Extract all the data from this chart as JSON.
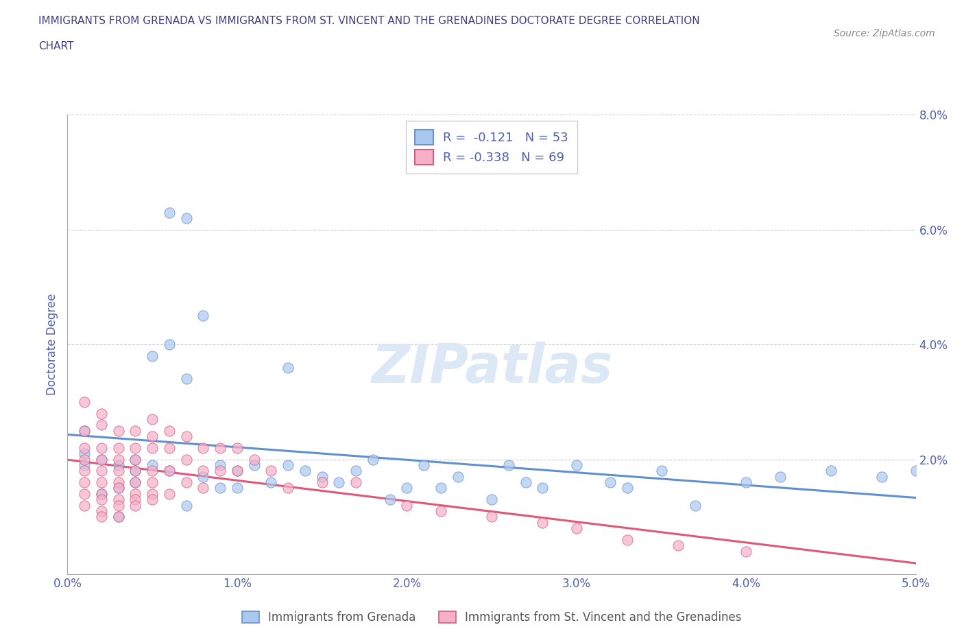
{
  "title_line1": "IMMIGRANTS FROM GRENADA VS IMMIGRANTS FROM ST. VINCENT AND THE GRENADINES DOCTORATE DEGREE CORRELATION",
  "title_line2": "CHART",
  "source": "Source: ZipAtlas.com",
  "ylabel": "Doctorate Degree",
  "xlim": [
    0.0,
    0.05
  ],
  "ylim": [
    0.0,
    0.08
  ],
  "xticks": [
    0.0,
    0.01,
    0.02,
    0.03,
    0.04,
    0.05
  ],
  "xticklabels": [
    "0.0%",
    "1.0%",
    "2.0%",
    "3.0%",
    "4.0%",
    "5.0%"
  ],
  "yticks": [
    0.0,
    0.02,
    0.04,
    0.06,
    0.08
  ],
  "yticklabels": [
    "",
    "2.0%",
    "4.0%",
    "6.0%",
    "8.0%"
  ],
  "grenada_color": "#a8c8f0",
  "stvincent_color": "#f5b0c8",
  "grenada_edge_color": "#7090c8",
  "stvincent_edge_color": "#d06080",
  "grenada_line_color": "#6090d0",
  "stvincent_line_color": "#e05878",
  "legend_text1": "R =  -0.121   N = 53",
  "legend_text2": "R = -0.338   N = 69",
  "legend_label1": "Immigrants from Grenada",
  "legend_label2": "Immigrants from St. Vincent and the Grenadines",
  "watermark": "ZIPatlas",
  "watermark_color": "#dce8f5",
  "title_color": "#404080",
  "axis_color": "#5060b0",
  "tick_color": "#5060b0",
  "grenada_scatter_x": [
    0.001,
    0.001,
    0.001,
    0.002,
    0.002,
    0.003,
    0.003,
    0.003,
    0.004,
    0.004,
    0.004,
    0.005,
    0.005,
    0.006,
    0.006,
    0.006,
    0.007,
    0.007,
    0.007,
    0.008,
    0.008,
    0.009,
    0.009,
    0.01,
    0.01,
    0.011,
    0.012,
    0.013,
    0.013,
    0.014,
    0.015,
    0.016,
    0.017,
    0.018,
    0.019,
    0.02,
    0.021,
    0.022,
    0.023,
    0.025,
    0.026,
    0.027,
    0.028,
    0.03,
    0.032,
    0.033,
    0.035,
    0.037,
    0.04,
    0.042,
    0.045,
    0.048,
    0.05
  ],
  "grenada_scatter_y": [
    0.019,
    0.021,
    0.025,
    0.02,
    0.014,
    0.01,
    0.015,
    0.019,
    0.016,
    0.018,
    0.02,
    0.019,
    0.038,
    0.018,
    0.04,
    0.063,
    0.012,
    0.062,
    0.034,
    0.045,
    0.017,
    0.015,
    0.019,
    0.015,
    0.018,
    0.019,
    0.016,
    0.019,
    0.036,
    0.018,
    0.017,
    0.016,
    0.018,
    0.02,
    0.013,
    0.015,
    0.019,
    0.015,
    0.017,
    0.013,
    0.019,
    0.016,
    0.015,
    0.019,
    0.016,
    0.015,
    0.018,
    0.012,
    0.016,
    0.017,
    0.018,
    0.017,
    0.018
  ],
  "stvincent_scatter_x": [
    0.001,
    0.001,
    0.001,
    0.001,
    0.001,
    0.001,
    0.001,
    0.001,
    0.002,
    0.002,
    0.002,
    0.002,
    0.002,
    0.002,
    0.002,
    0.002,
    0.002,
    0.002,
    0.003,
    0.003,
    0.003,
    0.003,
    0.003,
    0.003,
    0.003,
    0.003,
    0.003,
    0.004,
    0.004,
    0.004,
    0.004,
    0.004,
    0.004,
    0.004,
    0.004,
    0.005,
    0.005,
    0.005,
    0.005,
    0.005,
    0.005,
    0.005,
    0.006,
    0.006,
    0.006,
    0.006,
    0.007,
    0.007,
    0.007,
    0.008,
    0.008,
    0.008,
    0.009,
    0.009,
    0.01,
    0.01,
    0.011,
    0.012,
    0.013,
    0.015,
    0.017,
    0.02,
    0.022,
    0.025,
    0.028,
    0.03,
    0.033,
    0.036,
    0.04
  ],
  "stvincent_scatter_y": [
    0.03,
    0.025,
    0.022,
    0.02,
    0.018,
    0.016,
    0.014,
    0.012,
    0.028,
    0.026,
    0.022,
    0.02,
    0.018,
    0.016,
    0.014,
    0.013,
    0.011,
    0.01,
    0.025,
    0.022,
    0.02,
    0.018,
    0.016,
    0.015,
    0.013,
    0.012,
    0.01,
    0.025,
    0.022,
    0.02,
    0.018,
    0.016,
    0.014,
    0.013,
    0.012,
    0.027,
    0.024,
    0.022,
    0.018,
    0.016,
    0.014,
    0.013,
    0.025,
    0.022,
    0.018,
    0.014,
    0.024,
    0.02,
    0.016,
    0.022,
    0.018,
    0.015,
    0.022,
    0.018,
    0.022,
    0.018,
    0.02,
    0.018,
    0.015,
    0.016,
    0.016,
    0.012,
    0.011,
    0.01,
    0.009,
    0.008,
    0.006,
    0.005,
    0.004
  ],
  "background_color": "#ffffff",
  "grid_color": "#cccccc"
}
